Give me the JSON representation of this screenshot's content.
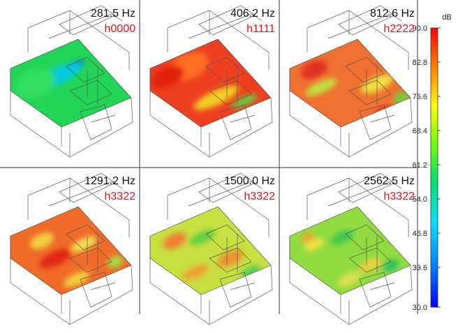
{
  "panels": [
    {
      "frequency": "281.5 Hz",
      "code": "h0000"
    },
    {
      "frequency": "406.2 Hz",
      "code": "h1111"
    },
    {
      "frequency": "812.6 Hz",
      "code": "h2222"
    },
    {
      "frequency": "1291.2 Hz",
      "code": "h3322"
    },
    {
      "frequency": "1500.0 Hz",
      "code": "h3322"
    },
    {
      "frequency": "2562.5 Hz",
      "code": "h3322"
    }
  ],
  "colorbar": {
    "unit": "dB",
    "ticks": [
      "90.0",
      "82.8",
      "75.6",
      "68.4",
      "61.2",
      "54.0",
      "46.8",
      "39.6",
      "30.0"
    ]
  }
}
